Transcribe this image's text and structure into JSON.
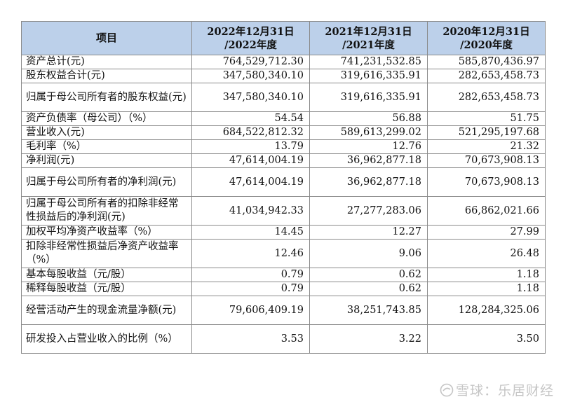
{
  "headers": [
    {
      "line1": "项目",
      "line2": ""
    },
    {
      "line1": "2022年12月31日",
      "line2": "/2022年度"
    },
    {
      "line1": "2021年12月31日",
      "line2": "/2021年度"
    },
    {
      "line1": "2020年12月31日",
      "line2": "/2020年度"
    }
  ],
  "rows": [
    {
      "label": "资产总计(元)",
      "v2022": "764,529,712.30",
      "v2021": "741,231,532.85",
      "v2020": "585,870,436.97",
      "tall": false
    },
    {
      "label": "股东权益合计(元)",
      "v2022": "347,580,340.10",
      "v2021": "319,616,335.91",
      "v2020": "282,653,458.73",
      "tall": false
    },
    {
      "label": "归属于母公司所有者的股东权益(元)",
      "v2022": "347,580,340.10",
      "v2021": "319,616,335.91",
      "v2020": "282,653,458.73",
      "tall": true
    },
    {
      "label": "资产负债率（母公司）（%）",
      "v2022": "54.54",
      "v2021": "56.88",
      "v2020": "51.75",
      "tall": false
    },
    {
      "label": "营业收入(元)",
      "v2022": "684,522,812.32",
      "v2021": "589,613,299.02",
      "v2020": "521,295,197.68",
      "tall": false
    },
    {
      "label": "毛利率（%）",
      "v2022": "13.79",
      "v2021": "12.76",
      "v2020": "21.32",
      "tall": false
    },
    {
      "label": "净利润(元)",
      "v2022": "47,614,004.19",
      "v2021": "36,962,877.18",
      "v2020": "70,673,908.13",
      "tall": false
    },
    {
      "label": "归属于母公司所有者的净利润(元)",
      "v2022": "47,614,004.19",
      "v2021": "36,962,877.18",
      "v2020": "70,673,908.13",
      "tall": true
    },
    {
      "label": "归属于母公司所有者的扣除非经常性损益后的净利润(元)",
      "v2022": "41,034,942.33",
      "v2021": "27,277,283.06",
      "v2020": "66,862,021.66",
      "tall": true
    },
    {
      "label": "加权平均净资产收益率（%）",
      "v2022": "14.45",
      "v2021": "12.27",
      "v2020": "27.99",
      "tall": false
    },
    {
      "label": "扣除非经常性损益后净资产收益率（%）",
      "v2022": "12.46",
      "v2021": "9.06",
      "v2020": "26.48",
      "tall": true
    },
    {
      "label": "基本每股收益（元/股）",
      "v2022": "0.79",
      "v2021": "0.62",
      "v2020": "1.18",
      "tall": false
    },
    {
      "label": "稀释每股收益（元/股）",
      "v2022": "0.79",
      "v2021": "0.62",
      "v2020": "1.18",
      "tall": false
    },
    {
      "label": "经营活动产生的现金流量净额(元)",
      "v2022": "79,606,409.19",
      "v2021": "38,251,743.85",
      "v2020": "128,284,325.06",
      "tall": true
    },
    {
      "label": "研发投入占营业收入的比例（%）",
      "v2022": "3.53",
      "v2021": "3.22",
      "v2020": "3.50",
      "tall": true
    }
  ],
  "watermark": {
    "text": "雪球：乐居财经",
    "icon": "snowball-logo-icon"
  }
}
